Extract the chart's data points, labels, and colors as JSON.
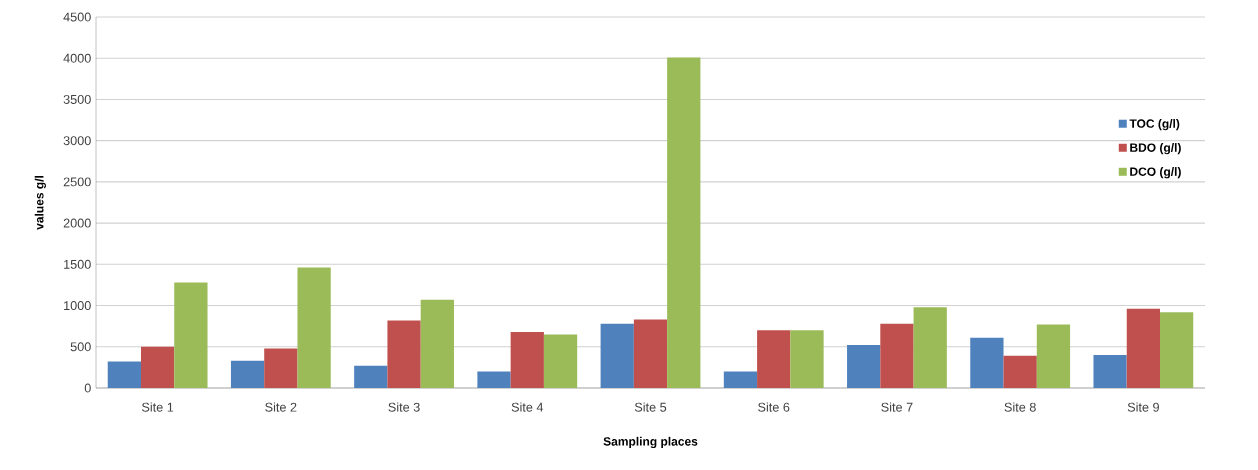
{
  "chart_data": {
    "type": "bar",
    "xlabel": "Sampling places",
    "ylabel": "values g/l",
    "categories": [
      "Site 1",
      "Site 2",
      "Site 3",
      "Site 4",
      "Site 5",
      "Site 6",
      "Site 7",
      "Site 8",
      "Site 9"
    ],
    "series": [
      {
        "name": "TOC (g/l)",
        "color": "#4f81bd",
        "values": [
          320,
          330,
          270,
          200,
          780,
          200,
          520,
          610,
          400
        ]
      },
      {
        "name": "BDO (g/l)",
        "color": "#c0504d",
        "values": [
          500,
          480,
          820,
          680,
          830,
          700,
          780,
          390,
          960
        ]
      },
      {
        "name": "DCO (g/l)",
        "color": "#9bbb59",
        "values": [
          1280,
          1460,
          1070,
          650,
          4010,
          700,
          980,
          770,
          920
        ]
      }
    ],
    "ylim": [
      0,
      4500
    ],
    "yticks": [
      0,
      500,
      1000,
      1500,
      2000,
      2500,
      3000,
      3500,
      4000,
      4500
    ],
    "grid": "y",
    "legend": "right"
  }
}
